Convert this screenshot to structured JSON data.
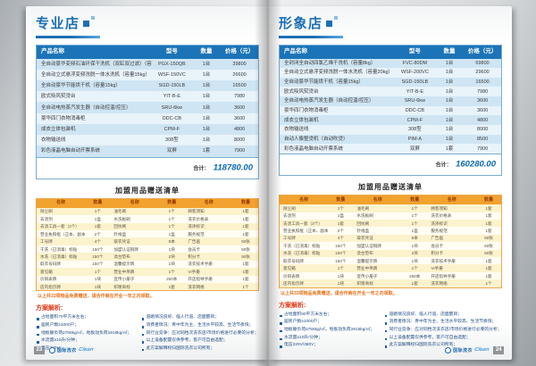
{
  "pages": [
    {
      "title": "专业店",
      "page_number": "23",
      "equipment": {
        "headers": [
          "产品名称",
          "型号",
          "数量",
          "价格（元）"
        ],
        "rows": [
          [
            "全自动豪华变频石油环保干洗机（双缸双过滤）（容量15kg）",
            "PGX-150QB",
            "1台",
            "39800"
          ],
          [
            "全自动立式悬浮变频洗脱一体水洗机（容量15kg）",
            "WSF-150VC",
            "1台",
            "26600"
          ],
          [
            "全自动豪华节能烘干机（容量15kg）",
            "SGD-150LB",
            "1台",
            "16500"
          ],
          [
            "欧式吸风熨烫台",
            "YIT-B-E",
            "1台",
            "7980"
          ],
          [
            "全自动电热蒸汽发生器（自动控温/控压）",
            "SRU-6kw",
            "1台",
            "3600"
          ],
          [
            "豪华四门衣物消毒柜",
            "DDC-CB",
            "1台",
            "3600"
          ],
          [
            "成衣立体包装机",
            "CPM-F",
            "1台",
            "4800"
          ],
          [
            "衣物输送线",
            "308型",
            "1台",
            "8000"
          ],
          [
            "彩色液晶电脑自动开票系统",
            "双屏",
            "1套",
            "7900"
          ]
        ],
        "total_label": "合计：",
        "total_value": "118780.00"
      },
      "gift": {
        "title": "加盟用品赠送清单",
        "headers": [
          "名称",
          "数量",
          "名称",
          "数量",
          "名称",
          "数量"
        ],
        "rows": [
          [
            "除尘刷",
            "1个",
            "油毛刷",
            "1个",
            "顾客须知",
            "1套"
          ],
          [
            "去渍剂",
            "1盒",
            "水洗板刷",
            "1个",
            "洗衣价格表",
            "1套"
          ],
          [
            "去渍工具一套（3个）",
            "1套",
            "回纹刷",
            "1个",
            "洗涤标识",
            "1套"
          ],
          [
            "营业执照框（正本、副本）",
            "2个",
            "针线盒",
            "1盒",
            "服务规范",
            "1套"
          ],
          [
            "工号牌",
            "4个",
            "取衣凭证",
            "8本",
            "广告画",
            "50张"
          ],
          [
            "干洗（已消毒）标贴",
            "150个",
            "加盟认证铜牌",
            "1块",
            "会员卡",
            "50张"
          ],
          [
            "水洗（已消毒）标贴",
            "150个",
            "烫台垫布",
            "2块",
            "积分卡",
            "50张"
          ],
          [
            "取衣号码牌",
            "150个",
            "温馨提示牌",
            "1块",
            "洗衣技术手册",
            "1套"
          ],
          [
            "意见箱",
            "1个",
            "营业中吊牌",
            "1个",
            "VI手册",
            "1套"
          ],
          [
            "价目表牌",
            "1块",
            "宣传小册子",
            "250本",
            "开店指导手册",
            "1套"
          ],
          [
            "店内指示牌",
            "1块",
            "织唛商标",
            "1套",
            "洗衣网络",
            "1个"
          ]
        ],
        "note": "以上共33项物品免费赠送，请合作商在开业一年之内领取。"
      },
      "analysis": {
        "title": "方案解析:",
        "site_bullets": [
          "占地面积70平方米左右；",
          "居民户数≥1000户；",
          "地板静负荷≥755kg/㎡，地板动负荷≥915kg/㎡；",
          "水流量≥10升/分钟；",
          "电压220V；"
        ],
        "market_bullets": [
          "道路情况良好、临人行道、店面醒目；",
          "消费者情况：青中年为主、生活水平较高、生活节奏快；",
          "同行业竞争：应对同档次洗衣店/市场价格进行必要的分析；",
          "以上设备配置仅供参考，客户可自由选配；",
          "此方案解释权归国际洗衣公司所有；"
        ]
      }
    },
    {
      "title": "形象店",
      "page_number": "24",
      "equipment": {
        "headers": [
          "产品名称",
          "型号",
          "数量",
          "价格（元）"
        ],
        "rows": [
          [
            "全封闭全自动四氯乙烯干洗机（容量8kg）",
            "FVC-80DM",
            "1台",
            "69800"
          ],
          [
            "全自动立式悬浮变频洗脱一体水洗机（容量20kg）",
            "WSF-200VC",
            "1台",
            "29600"
          ],
          [
            "全自动豪华节能烘干机（容量15kg）",
            "SGD-150LB",
            "1台",
            "16500"
          ],
          [
            "欧式吸风熨烫台",
            "YIT-B-E",
            "1台",
            "7980"
          ],
          [
            "全自动电热蒸汽发生器（自动控温/控压）",
            "SRU-6kw",
            "1台",
            "3600"
          ],
          [
            "豪华四门衣物消毒柜",
            "DDC-CB",
            "1台",
            "3600"
          ],
          [
            "成衣立体包装机",
            "CPM-F",
            "1台",
            "4800"
          ],
          [
            "衣物输送线",
            "308型",
            "1台",
            "8000"
          ],
          [
            "自动人像整烫机（自动吹烫）",
            "PIM-A",
            "1台",
            "8500"
          ],
          [
            "彩色液晶电脑自动开票系统",
            "双屏",
            "1套",
            "7900"
          ]
        ],
        "total_label": "合计：",
        "total_value": "160280.00"
      },
      "gift": {
        "title": "加盟用品赠送清单",
        "headers": [
          "名称",
          "数量",
          "名称",
          "数量",
          "名称",
          "数量"
        ],
        "rows": [
          [
            "除尘刷",
            "1个",
            "油毛刷",
            "1个",
            "顾客须知",
            "1套"
          ],
          [
            "去渍剂",
            "1盒",
            "水洗板刷",
            "1个",
            "洗衣价格表",
            "1套"
          ],
          [
            "去渍工具一套（3个）",
            "1套",
            "回纹刷",
            "1个",
            "洗涤标识",
            "1套"
          ],
          [
            "营业执照框（正本、副本）",
            "2个",
            "针线盒",
            "1盒",
            "服务规范",
            "1套"
          ],
          [
            "工号牌",
            "4个",
            "取衣凭证",
            "8本",
            "广告画",
            "50张"
          ],
          [
            "干洗（已消毒）标贴",
            "150个",
            "加盟认证铜牌",
            "1块",
            "会员卡",
            "50张"
          ],
          [
            "水洗（已消毒）标贴",
            "150个",
            "烫台垫布",
            "2块",
            "积分卡",
            "50张"
          ],
          [
            "取衣号码牌",
            "150个",
            "温馨提示牌",
            "1块",
            "洗衣技术手册",
            "1套"
          ],
          [
            "意见箱",
            "1个",
            "营业中吊牌",
            "1个",
            "VI手册",
            "1套"
          ],
          [
            "价目表牌",
            "1块",
            "宣传小册子",
            "250本",
            "开店指导手册",
            "1套"
          ],
          [
            "店内指示牌",
            "1块",
            "织唛商标",
            "1套",
            "洗衣网络",
            "1个"
          ]
        ],
        "note": "以上共33项物品免费赠送，请合作商在开业一年之内领取。"
      },
      "analysis": {
        "title": "方案解析:",
        "site_bullets": [
          "占地面积90平方米左右；",
          "居民户数≥1000户；",
          "地板静负荷≥755kg/㎡，地板动负荷≥915kg/㎡；",
          "水流量≥10升/分钟；",
          "电压220V/380V；"
        ],
        "market_bullets": [
          "道路情况良好、临人行道、店面醒目；",
          "消费者情况：青中年为主、生活水平较高、生活节奏快；",
          "同行业竞争：应对同档次洗衣店/市场价格进行必要的分析；",
          "以上设备配置仅供参考，客户可自由选配；",
          "此方案解释权归国际洗衣公司所有；"
        ]
      }
    }
  ],
  "footer": {
    "logo_text": "国际洗衣",
    "logo_script": "Clean"
  },
  "colors": {
    "brand_blue": "#1b6fb4",
    "table_header_blue": "#1c74b8",
    "row_blue": "#cfe5f3",
    "gift_orange": "#f2a22e",
    "note_orange": "#e8731a",
    "total_blue": "#0a68b6",
    "analysis_red": "#e23a18"
  }
}
